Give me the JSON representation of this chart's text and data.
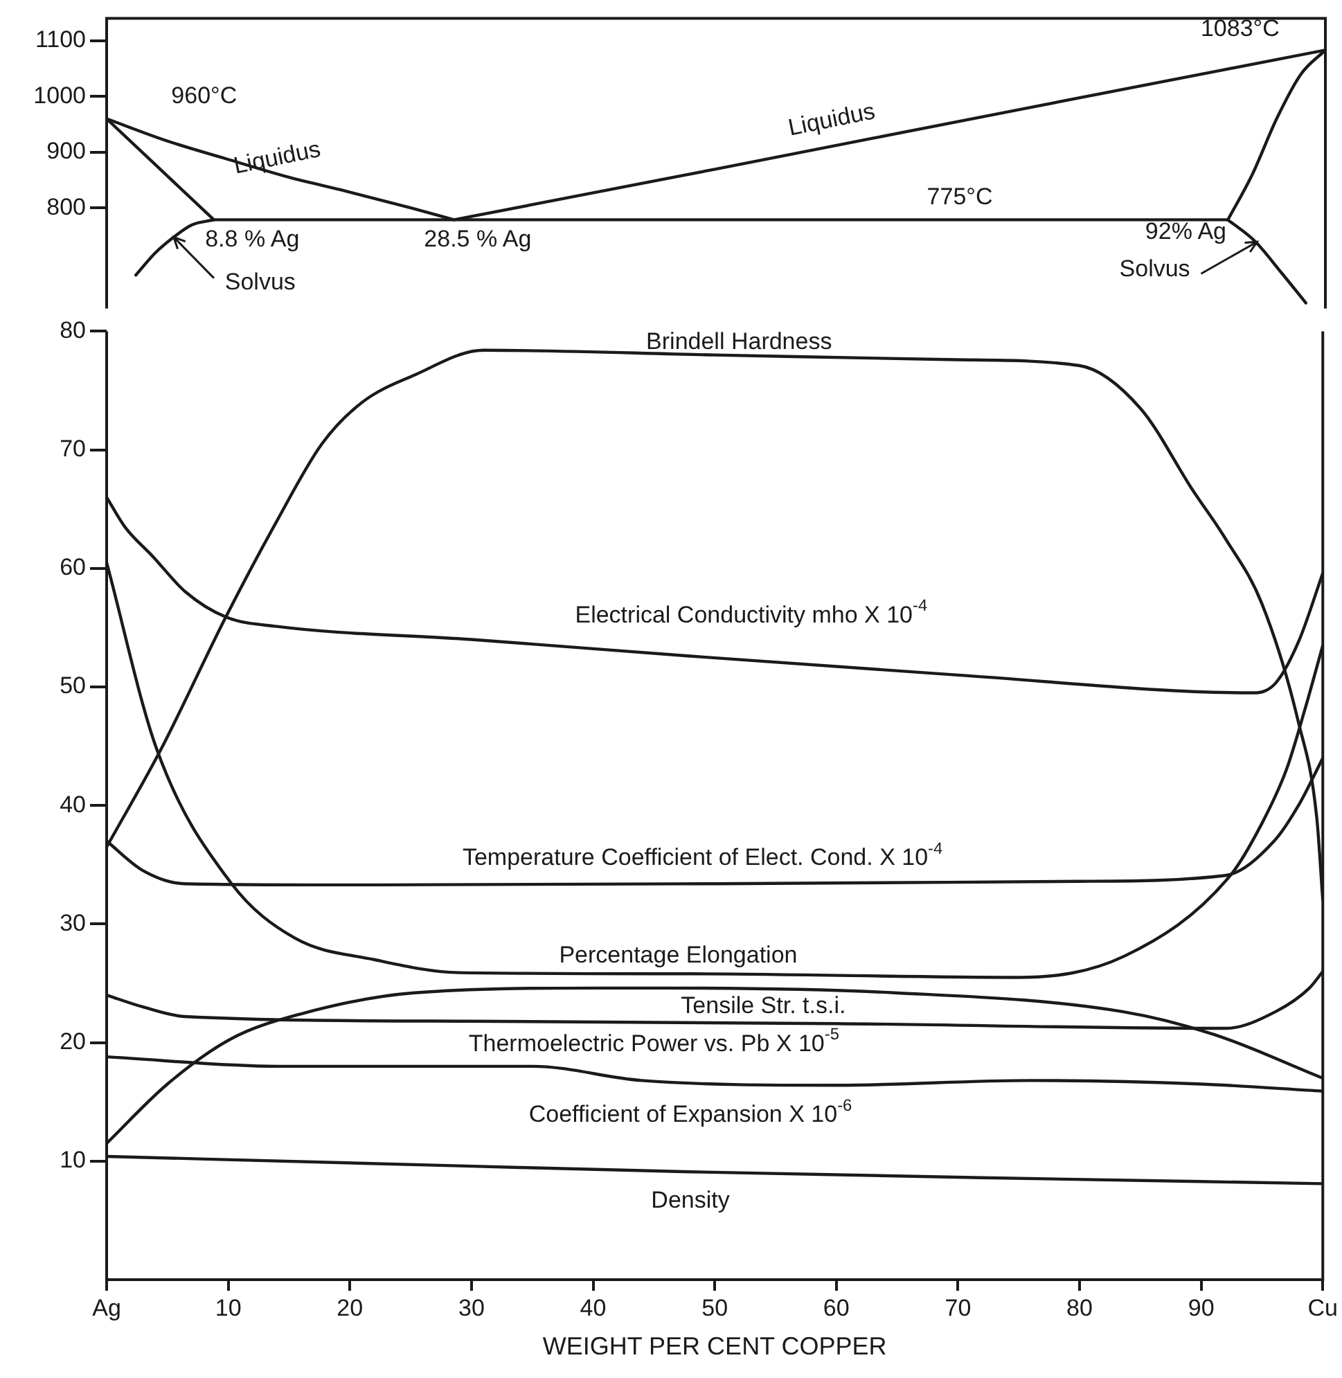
{
  "chart_data": [
    {
      "type": "line",
      "xlim": [
        0,
        100
      ],
      "ylim": [
        620,
        1140
      ],
      "yticks": [
        800,
        900,
        1000,
        1100
      ],
      "tick_labels": "y",
      "grid": false,
      "legend": false,
      "marker": "none",
      "line_style": "solid",
      "series": [
        {
          "color": "#1a1a1a",
          "x": [
            0,
            5,
            9.7,
            15,
            19.7,
            25,
            28.5
          ],
          "values": [
            960,
            920,
            889,
            855,
            830,
            800,
            779
          ]
        },
        {
          "color": "#1a1a1a",
          "x": [
            28.5,
            50,
            75,
            100
          ],
          "values": [
            779,
            870,
            977,
            1083
          ]
        },
        {
          "color": "#1a1a1a",
          "x": [
            0,
            8.8
          ],
          "values": [
            960,
            779
          ]
        },
        {
          "color": "#1a1a1a",
          "x": [
            8.8,
            28.5,
            60,
            92
          ],
          "values": [
            779,
            779,
            779,
            779
          ]
        },
        {
          "color": "#1a1a1a",
          "x": [
            92,
            94,
            96,
            98,
            100
          ],
          "values": [
            779,
            860,
            960,
            1040,
            1083
          ]
        },
        {
          "color": "#1a1a1a",
          "x": [
            2.4,
            4,
            5.5,
            7,
            8.8
          ],
          "values": [
            680,
            720,
            748,
            770,
            779
          ]
        },
        {
          "color": "#1a1a1a",
          "x": [
            92,
            94.2,
            96.4,
            98.4
          ],
          "values": [
            779,
            741,
            684,
            630
          ]
        }
      ],
      "annotations": [
        "960°C",
        "1083°C",
        "Liquidus",
        "Liquidus",
        "775°C",
        "8.8 % Ag",
        "28.5 % Ag",
        "92% Ag",
        "Solvus",
        "Solvus"
      ]
    },
    {
      "type": "line",
      "xlabel": "WEIGHT PER CENT COPPER",
      "xlim": [
        0,
        100
      ],
      "xticks": [
        {
          "value": 0,
          "label": "Ag"
        },
        10,
        20,
        30,
        40,
        50,
        60,
        70,
        80,
        90,
        {
          "value": 100,
          "label": "Cu"
        }
      ],
      "ylim": [
        0,
        80
      ],
      "yticks": [
        10,
        20,
        30,
        40,
        50,
        60,
        70,
        80
      ],
      "grid": false,
      "legend": false,
      "marker": "none",
      "line_style": "solid",
      "series": [
        {
          "color": "#1a1a1a",
          "x": [
            0,
            4.5,
            9.8,
            14,
            17.7,
            21,
            25.3,
            31,
            50,
            70,
            80,
            85,
            89.3,
            92,
            95,
            98,
            99.5,
            100
          ],
          "values": [
            36.5,
            44.8,
            55.9,
            64,
            70.5,
            74,
            76.3,
            78.4,
            78,
            77.6,
            77.1,
            73.5,
            66.6,
            62.5,
            57,
            47,
            39,
            32
          ]
        },
        {
          "color": "#1a1a1a",
          "x": [
            0,
            1.5,
            3.8,
            6.5,
            9.8,
            14,
            30,
            48,
            70,
            94.3,
            96.1,
            98,
            100
          ],
          "values": [
            66,
            63.5,
            61,
            58,
            55.9,
            55.1,
            54,
            52.6,
            51,
            49.5,
            50.3,
            53.8,
            59.6
          ]
        },
        {
          "color": "#1a1a1a",
          "x": [
            0,
            3,
            6.4,
            20,
            50,
            80,
            92,
            96,
            98,
            100
          ],
          "values": [
            37,
            34.5,
            33.4,
            33.3,
            33.4,
            33.6,
            34.1,
            37,
            40,
            44
          ]
        },
        {
          "color": "#1a1a1a",
          "x": [
            0,
            4.1,
            10.2,
            15.5,
            22,
            29,
            48,
            75,
            83.7,
            92.4,
            95,
            97,
            98.5,
            100
          ],
          "values": [
            60.5,
            44.8,
            33.5,
            28.8,
            27,
            25.9,
            25.8,
            25.5,
            27.3,
            34.1,
            38.5,
            43,
            48,
            53.5
          ]
        },
        {
          "color": "#1a1a1a",
          "x": [
            0,
            5,
            10.2,
            15.9,
            25.3,
            40.5,
            45.8,
            64.8,
            83.6,
            91,
            100
          ],
          "values": [
            11.5,
            16.5,
            20.3,
            22.4,
            24.2,
            24.6,
            24.6,
            24.2,
            22.6,
            20.7,
            17
          ]
        },
        {
          "color": "#1a1a1a",
          "x": [
            0,
            3,
            6.4,
            30,
            60,
            92,
            96.1,
            98.9,
            100
          ],
          "values": [
            24,
            23,
            22.2,
            21.8,
            21.6,
            21.2,
            22.6,
            24.6,
            26
          ]
        },
        {
          "color": "#1a1a1a",
          "x": [
            0,
            14,
            35,
            44,
            60,
            76,
            90,
            100
          ],
          "values": [
            18.8,
            18,
            18,
            16.8,
            16.4,
            16.8,
            16.5,
            15.9
          ]
        },
        {
          "color": "#1a1a1a",
          "x": [
            0,
            29,
            48,
            72,
            100
          ],
          "values": [
            10.4,
            9.6,
            9.1,
            8.6,
            8.1
          ]
        }
      ],
      "annotations": [
        "Brindell Hardness",
        "Electrical Conductivity mho X 10$^{-4}$",
        "Temperature Coefficient of Elect. Cond. X 10$^{-4}$",
        "Percentage Elongation",
        "Tensile Str. t.s.i.",
        "Thermoelectric Power vs. Pb X 10$^{-5}$",
        "Coefficient of Expansion X 10$^{-6}$",
        "Density"
      ]
    }
  ]
}
